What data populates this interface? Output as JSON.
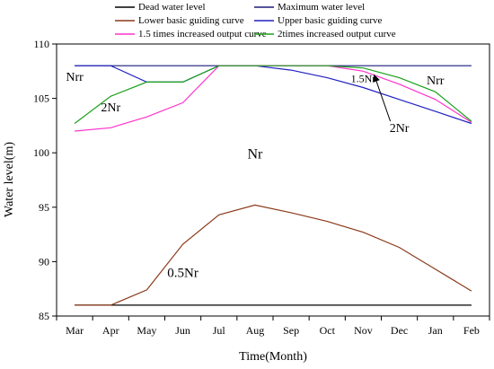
{
  "chart_data": {
    "type": "line",
    "title": "",
    "xlabel": "Time(Month)",
    "ylabel": "Water level(m)",
    "ylim": [
      85,
      110
    ],
    "yticks": [
      85,
      90,
      95,
      100,
      105,
      110
    ],
    "categories": [
      "Mar",
      "Apr",
      "May",
      "Jun",
      "Jul",
      "Aug",
      "Sep",
      "Oct",
      "Nov",
      "Dec",
      "Jan",
      "Feb"
    ],
    "legend_position": "top",
    "series": [
      {
        "name": "Dead water level",
        "color": "#000000",
        "values": [
          86,
          86,
          86,
          86,
          86,
          86,
          86,
          86,
          86,
          86,
          86,
          86
        ]
      },
      {
        "name": "Maximum water level",
        "color": "#1a1a7a",
        "values": [
          108,
          108,
          108,
          108,
          108,
          108,
          108,
          108,
          108,
          108,
          108,
          108
        ]
      },
      {
        "name": "Lower basic guiding curve",
        "color": "#8b3a1a",
        "values": [
          86,
          86,
          87.4,
          91.6,
          94.3,
          95.2,
          94.5,
          93.7,
          92.7,
          91.3,
          89.3,
          87.3
        ]
      },
      {
        "name": "Upper basic guiding curve",
        "color": "#2020c0",
        "values": [
          108,
          108,
          106.5,
          106.5,
          108,
          108,
          107.6,
          106.9,
          106.0,
          104.9,
          103.8,
          102.7
        ]
      },
      {
        "name": "1.5 times increased output curve",
        "color": "#ff33cc",
        "values": [
          102,
          102.3,
          103.3,
          104.6,
          108,
          108,
          108,
          108,
          107.5,
          106.3,
          104.9,
          102.8
        ]
      },
      {
        "name": "2times increased output curve",
        "color": "#1aa11a",
        "values": [
          102.7,
          105.2,
          106.5,
          106.5,
          108,
          108,
          108,
          108,
          107.8,
          106.9,
          105.6,
          102.9
        ]
      }
    ],
    "annotations": [
      {
        "text": "Nrr",
        "month": "Mar",
        "y": 106.6,
        "size": 14
      },
      {
        "text": "2Nr",
        "month": "Apr",
        "y": 103.8,
        "size": 14
      },
      {
        "text": "Nr",
        "month": "Aug",
        "y": 99.5,
        "size": 16
      },
      {
        "text": "0.5Nr",
        "month": "Jun",
        "y": 88.6,
        "size": 15
      },
      {
        "text": "1.5Nr",
        "month": "Nov",
        "y": 106.5,
        "size": 12
      },
      {
        "text": "Nrr",
        "month": "Jan",
        "y": 106.3,
        "size": 14
      },
      {
        "text": "2Nr",
        "month": "Dec",
        "y": 101.9,
        "size": 14
      }
    ]
  }
}
